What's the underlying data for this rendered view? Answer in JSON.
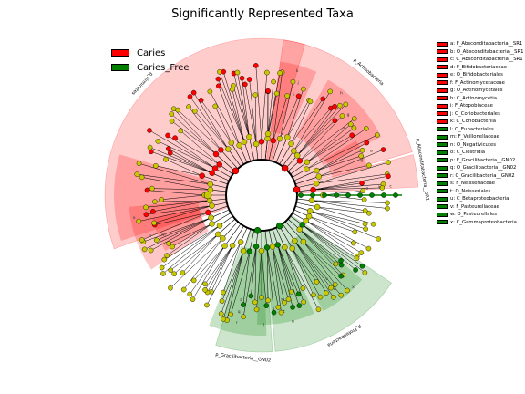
{
  "title": "Significantly Represented Taxa",
  "colors": {
    "Caries": "#ff0000",
    "Caries_Free": "#007f00",
    "neutral": "#c8c800"
  },
  "legend": [
    {
      "label": "Caries",
      "color": "#ff0000"
    },
    {
      "label": "Caries_Free",
      "color": "#007f00"
    }
  ],
  "chart_data": {
    "type": "cladogram",
    "title": "Significantly Represented Taxa",
    "classes": [
      "Caries",
      "Caries_Free"
    ],
    "clades": [
      {
        "letter": "a",
        "name": "F_Absconditabacteria__SR1",
        "class": "Caries"
      },
      {
        "letter": "b",
        "name": "O_Absconditabacteria__SR1",
        "class": "Caries"
      },
      {
        "letter": "c",
        "name": "C_Absconditabacteria__SR1",
        "class": "Caries"
      },
      {
        "letter": "d",
        "name": "F_Bifidobacteriaceae",
        "class": "Caries"
      },
      {
        "letter": "e",
        "name": "O_Bifidobacteriales",
        "class": "Caries"
      },
      {
        "letter": "f",
        "name": "F_Actinomycetaceae",
        "class": "Caries"
      },
      {
        "letter": "g",
        "name": "O_Actinomycetales",
        "class": "Caries"
      },
      {
        "letter": "h",
        "name": "C_Actinomycetia",
        "class": "Caries"
      },
      {
        "letter": "i",
        "name": "F_Atopobiaceae",
        "class": "Caries"
      },
      {
        "letter": "j",
        "name": "O_Coriobacteriales",
        "class": "Caries"
      },
      {
        "letter": "k",
        "name": "C_Coriobacteriia",
        "class": "Caries"
      },
      {
        "letter": "l",
        "name": "O_Eubacteriales",
        "class": "Caries_Free"
      },
      {
        "letter": "m",
        "name": "F_Veillonellaceae",
        "class": "Caries_Free"
      },
      {
        "letter": "n",
        "name": "O_Negativicutes",
        "class": "Caries_Free"
      },
      {
        "letter": "o",
        "name": "C_Clostridia",
        "class": "Caries_Free"
      },
      {
        "letter": "p",
        "name": "F_Gracilibacteria__GN02",
        "class": "Caries_Free"
      },
      {
        "letter": "q",
        "name": "O_Gracilibacteria__GN02",
        "class": "Caries_Free"
      },
      {
        "letter": "r",
        "name": "C_Gracilibacteria__GN02",
        "class": "Caries_Free"
      },
      {
        "letter": "s",
        "name": "F_Neisseriaceae",
        "class": "Caries_Free"
      },
      {
        "letter": "t",
        "name": "O_Neisseriales",
        "class": "Caries_Free"
      },
      {
        "letter": "u",
        "name": "C_Betaproteobacteria",
        "class": "Caries_Free"
      },
      {
        "letter": "v",
        "name": "F_Pasteurellaceae",
        "class": "Caries_Free"
      },
      {
        "letter": "w",
        "name": "O_Pasteurellales",
        "class": "Caries_Free"
      },
      {
        "letter": "x",
        "name": "C_Gammaproteobacteria",
        "class": "Caries_Free"
      }
    ],
    "phyla": [
      {
        "label": "p_Actinobacteria",
        "class": "Caries",
        "start_deg": -82,
        "end_deg": -16
      },
      {
        "label": "p_Absconditabacteria__SR1",
        "class": "Caries",
        "start_deg": -15,
        "end_deg": -3
      },
      {
        "label": "p_Firmicutes",
        "class": "Caries",
        "start_deg": 160,
        "end_deg": 286
      },
      {
        "label": "p_Gracilibacteria__GN02",
        "class": "Caries_Free",
        "start_deg": 86,
        "end_deg": 107
      },
      {
        "label": "p_Proteobacteria",
        "class": "Caries_Free",
        "start_deg": 34,
        "end_deg": 85
      }
    ],
    "inner_labels": [
      {
        "text": "k",
        "angle": -74,
        "ring": 3
      },
      {
        "text": "j",
        "angle": -72,
        "ring": 2
      },
      {
        "text": "i",
        "angle": -72,
        "ring": 1
      },
      {
        "text": "h",
        "angle": -52,
        "ring": 3
      },
      {
        "text": "g",
        "angle": -43,
        "ring": 2
      },
      {
        "text": "f",
        "angle": -39,
        "ring": 1
      },
      {
        "text": "e",
        "angle": -22,
        "ring": 2
      },
      {
        "text": "d",
        "angle": -19,
        "ring": 1
      },
      {
        "text": "c",
        "angle": -4,
        "ring": 3
      },
      {
        "text": "b",
        "angle": -4,
        "ring": 2
      },
      {
        "text": "a",
        "angle": -4,
        "ring": 1
      },
      {
        "text": "o",
        "angle": 170,
        "ring": 3
      },
      {
        "text": "n",
        "angle": 160,
        "ring": 2
      },
      {
        "text": "m",
        "angle": 158,
        "ring": 1
      },
      {
        "text": "r",
        "angle": 101,
        "ring": 3
      },
      {
        "text": "q",
        "angle": 101,
        "ring": 2
      },
      {
        "text": "p",
        "angle": 101,
        "ring": 1
      },
      {
        "text": "l",
        "angle": 89,
        "ring": 3
      },
      {
        "text": "x",
        "angle": 45,
        "ring": 3
      },
      {
        "text": "w",
        "angle": 52,
        "ring": 2
      },
      {
        "text": "v",
        "angle": 52,
        "ring": 1
      },
      {
        "text": "u",
        "angle": 76,
        "ring": 3
      },
      {
        "text": "t",
        "angle": 79,
        "ring": 2
      },
      {
        "text": "s",
        "angle": 79,
        "ring": 1
      }
    ]
  }
}
